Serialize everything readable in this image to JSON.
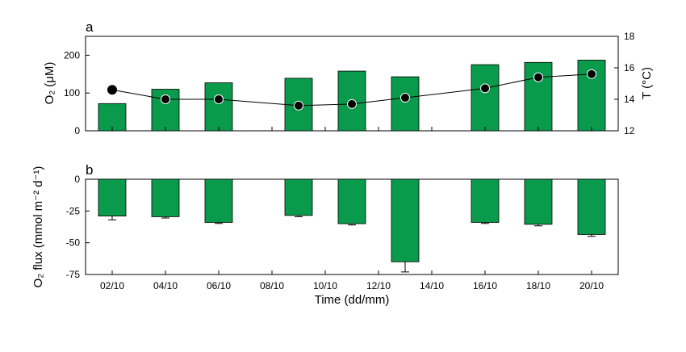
{
  "chart_data": [
    {
      "panel": "a",
      "type": "bar",
      "x": [
        "2024-10-02",
        "2024-10-04",
        "2024-10-06",
        "2024-10-09",
        "2024-10-11",
        "2024-10-13",
        "2024-10-16",
        "2024-10-18",
        "2024-10-20"
      ],
      "series": [
        {
          "name": "O2",
          "type": "bar",
          "axis": "left",
          "color": "#0a9a4b",
          "values": [
            72,
            110,
            127,
            139,
            158,
            143,
            175,
            181,
            187
          ]
        },
        {
          "name": "T",
          "type": "line",
          "axis": "right",
          "color": "#000000",
          "values": [
            14.6,
            14.0,
            14.0,
            13.6,
            13.7,
            14.1,
            14.7,
            15.4,
            15.6
          ]
        }
      ],
      "ylabel_left": "O₂ (μM)",
      "ylim_left": [
        0,
        250
      ],
      "yticks_left": [
        0,
        100,
        200
      ],
      "ylabel_right": "T (°C)",
      "ylim_right": [
        12,
        18
      ],
      "yticks_right": [
        12,
        14,
        16,
        18
      ]
    },
    {
      "panel": "b",
      "type": "bar",
      "x": [
        "2024-10-02",
        "2024-10-04",
        "2024-10-06",
        "2024-10-09",
        "2024-10-11",
        "2024-10-13",
        "2024-10-16",
        "2024-10-18",
        "2024-10-20"
      ],
      "series": [
        {
          "name": "O2 flux",
          "color": "#0a9a4b",
          "values": [
            -29.0,
            -29.5,
            -34.0,
            -28.5,
            -35.0,
            -65.0,
            -34.0,
            -35.5,
            -43.5
          ],
          "errors": [
            3.0,
            1.0,
            0.8,
            1.0,
            1.0,
            8.0,
            0.8,
            1.2,
            1.5
          ]
        }
      ],
      "ylabel": "O₂ flux (mmol m⁻² d⁻¹)",
      "ylim": [
        -75,
        0
      ],
      "yticks": [
        0,
        -25,
        -50,
        -75
      ],
      "xlabel": "Time (dd/mm)",
      "xtick_labels": [
        "02/10",
        "04/10",
        "06/10",
        "08/10",
        "10/10",
        "12/10",
        "14/10",
        "16/10",
        "18/10",
        "20/10"
      ]
    }
  ],
  "labels": {
    "panel_a": "a",
    "panel_b": "b",
    "ylabel_a_left": "O₂ (μM)",
    "ylabel_a_right": "T (°C)",
    "ylabel_b": "O₂ flux (mmol m⁻² d⁻¹)",
    "xlabel": "Time (dd/mm)"
  }
}
